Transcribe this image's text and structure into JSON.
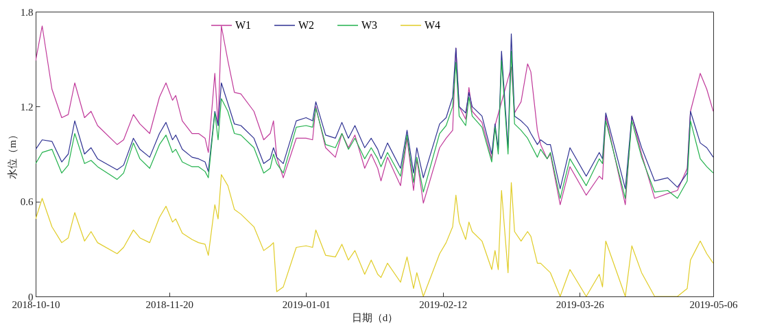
{
  "chart_data": {
    "type": "line",
    "xlabel": "日期（d）",
    "ylabel": "水位（m）",
    "x": [
      "2018-10-10",
      "2018-10-12",
      "2018-10-15",
      "2018-10-18",
      "2018-10-20",
      "2018-10-22",
      "2018-10-25",
      "2018-10-27",
      "2018-10-29",
      "2018-11-04",
      "2018-11-06",
      "2018-11-09",
      "2018-11-11",
      "2018-11-14",
      "2018-11-17",
      "2018-11-19",
      "2018-11-21",
      "2018-11-22",
      "2018-11-24",
      "2018-11-27",
      "2018-11-29",
      "2018-12-01",
      "2018-12-02",
      "2018-12-04",
      "2018-12-05",
      "2018-12-06",
      "2018-12-08",
      "2018-12-10",
      "2018-12-12",
      "2018-12-16",
      "2018-12-19",
      "2018-12-21",
      "2018-12-22",
      "2018-12-23",
      "2018-12-25",
      "2018-12-29",
      "2019-01-01",
      "2019-01-03",
      "2019-01-04",
      "2019-01-07",
      "2019-01-10",
      "2019-01-12",
      "2019-01-14",
      "2019-01-16",
      "2019-01-19",
      "2019-01-21",
      "2019-01-23",
      "2019-01-24",
      "2019-01-26",
      "2019-01-30",
      "2019-02-01",
      "2019-02-03",
      "2019-02-04",
      "2019-02-06",
      "2019-02-11",
      "2019-02-13",
      "2019-02-15",
      "2019-02-16",
      "2019-02-17",
      "2019-02-19",
      "2019-02-20",
      "2019-02-21",
      "2019-02-24",
      "2019-02-27",
      "2019-02-28",
      "2019-03-01",
      "2019-03-02",
      "2019-03-04",
      "2019-03-05",
      "2019-03-06",
      "2019-03-08",
      "2019-03-10",
      "2019-03-11",
      "2019-03-13",
      "2019-03-14",
      "2019-03-16",
      "2019-03-17",
      "2019-03-20",
      "2019-03-23",
      "2019-03-28",
      "2019-04-01",
      "2019-04-02",
      "2019-04-03",
      "2019-04-09",
      "2019-04-11",
      "2019-04-14",
      "2019-04-18",
      "2019-04-22",
      "2019-04-25",
      "2019-04-28",
      "2019-04-29",
      "2019-05-02",
      "2019-05-04",
      "2019-05-06"
    ],
    "series": [
      {
        "name": "W1",
        "color": "#c0399a",
        "values": [
          1.49,
          1.71,
          1.31,
          1.13,
          1.15,
          1.35,
          1.13,
          1.17,
          1.08,
          0.96,
          0.99,
          1.15,
          1.09,
          1.03,
          1.26,
          1.35,
          1.24,
          1.27,
          1.11,
          1.03,
          1.03,
          1.0,
          0.91,
          1.41,
          1.08,
          1.71,
          1.49,
          1.29,
          1.28,
          1.17,
          0.99,
          1.03,
          1.11,
          0.88,
          0.75,
          1.0,
          1.0,
          0.99,
          1.2,
          0.94,
          0.88,
          1.03,
          0.94,
          1.02,
          0.81,
          0.9,
          0.81,
          0.73,
          0.88,
          0.7,
          1.0,
          0.67,
          0.87,
          0.59,
          0.94,
          1.0,
          1.05,
          1.57,
          1.2,
          1.12,
          1.32,
          1.17,
          1.1,
          0.87,
          1.08,
          null,
          null,
          null,
          1.45,
          1.16,
          1.23,
          1.47,
          1.42,
          1.05,
          0.96,
          0.87,
          0.9,
          0.58,
          0.82,
          0.64,
          0.76,
          0.74,
          1.14,
          0.58,
          1.14,
          0.9,
          0.62,
          0.65,
          0.67,
          0.81,
          1.17,
          1.41,
          1.31,
          1.17
        ]
      },
      {
        "name": "W2",
        "color": "#2e3192",
        "values": [
          0.93,
          0.99,
          0.98,
          0.85,
          0.9,
          1.11,
          0.9,
          0.94,
          0.87,
          0.8,
          0.83,
          1.0,
          0.93,
          0.88,
          1.03,
          1.1,
          0.99,
          1.02,
          0.93,
          0.88,
          0.87,
          0.85,
          0.79,
          1.17,
          1.08,
          1.35,
          1.22,
          1.09,
          1.08,
          1.0,
          0.84,
          0.87,
          0.94,
          0.88,
          0.84,
          1.11,
          1.13,
          1.11,
          1.23,
          1.02,
          1.0,
          1.1,
          1.0,
          1.08,
          0.94,
          1.0,
          0.93,
          0.87,
          0.97,
          0.81,
          1.05,
          0.78,
          0.94,
          0.75,
          1.09,
          1.13,
          1.26,
          1.57,
          1.2,
          1.16,
          1.29,
          1.2,
          1.14,
          0.9,
          1.09,
          0.93,
          1.55,
          0.94,
          1.66,
          1.14,
          1.11,
          1.07,
          1.03,
          0.96,
          0.99,
          0.96,
          0.96,
          0.68,
          0.94,
          0.76,
          0.91,
          0.87,
          1.16,
          0.68,
          1.14,
          0.94,
          0.73,
          0.75,
          0.69,
          0.78,
          1.17,
          0.97,
          0.94,
          0.88
        ]
      },
      {
        "name": "W3",
        "color": "#22b14c",
        "values": [
          0.84,
          0.91,
          0.93,
          0.78,
          0.83,
          1.03,
          0.84,
          0.86,
          0.82,
          0.74,
          0.78,
          0.97,
          0.87,
          0.81,
          0.96,
          1.02,
          0.91,
          0.93,
          0.85,
          0.82,
          0.82,
          0.79,
          0.75,
          1.16,
          0.99,
          1.25,
          1.17,
          1.03,
          1.02,
          0.94,
          0.78,
          0.81,
          0.9,
          0.84,
          0.78,
          1.07,
          1.08,
          1.07,
          1.19,
          0.96,
          0.94,
          1.03,
          0.93,
          1.0,
          0.87,
          0.94,
          0.87,
          0.82,
          0.91,
          0.76,
          1.02,
          0.72,
          0.88,
          0.66,
          1.03,
          1.08,
          1.2,
          1.48,
          1.14,
          1.08,
          1.26,
          1.14,
          1.07,
          0.85,
          1.07,
          0.9,
          1.49,
          0.9,
          1.55,
          1.09,
          1.05,
          1.0,
          0.96,
          0.88,
          0.93,
          0.87,
          0.91,
          0.62,
          0.87,
          0.7,
          0.87,
          0.84,
          1.11,
          0.62,
          1.11,
          0.88,
          0.66,
          0.67,
          0.62,
          0.73,
          1.11,
          0.87,
          0.82,
          0.78
        ]
      },
      {
        "name": "W4",
        "color": "#e0cc26",
        "values": [
          0.49,
          0.62,
          0.44,
          0.34,
          0.37,
          0.53,
          0.35,
          0.41,
          0.34,
          0.27,
          0.31,
          0.42,
          0.37,
          0.34,
          0.5,
          0.57,
          0.47,
          0.49,
          0.4,
          0.36,
          0.34,
          0.33,
          0.26,
          0.58,
          0.49,
          0.77,
          0.7,
          0.55,
          0.52,
          0.44,
          0.29,
          0.32,
          0.34,
          0.03,
          0.06,
          0.31,
          0.32,
          0.31,
          0.42,
          0.26,
          0.25,
          0.33,
          0.23,
          0.29,
          0.14,
          0.23,
          0.14,
          0.12,
          0.21,
          0.09,
          0.25,
          0.05,
          0.15,
          0,
          0.27,
          0.34,
          0.44,
          0.64,
          0.47,
          0.36,
          0.47,
          0.41,
          0.35,
          0.17,
          0.29,
          0.17,
          0.67,
          0.15,
          0.72,
          0.41,
          0.35,
          0.41,
          0.38,
          0.21,
          0.21,
          0.17,
          0.15,
          0,
          0.17,
          0,
          0.14,
          0.06,
          0.35,
          0,
          0.32,
          0.15,
          0,
          0,
          0,
          0.05,
          0.23,
          0.35,
          0.27,
          0.21
        ]
      }
    ],
    "xlim": [
      "2018-10-10",
      "2019-05-06"
    ],
    "xticks": [
      "2018-10-10",
      "2018-11-20",
      "2019-01-01",
      "2019-02-12",
      "2019-03-26",
      "2019-05-06"
    ],
    "ylim": [
      0,
      1.8
    ],
    "yticks": [
      0,
      0.6,
      1.2,
      1.8
    ],
    "grid": false,
    "legend": "top",
    "line_style": "solid"
  }
}
